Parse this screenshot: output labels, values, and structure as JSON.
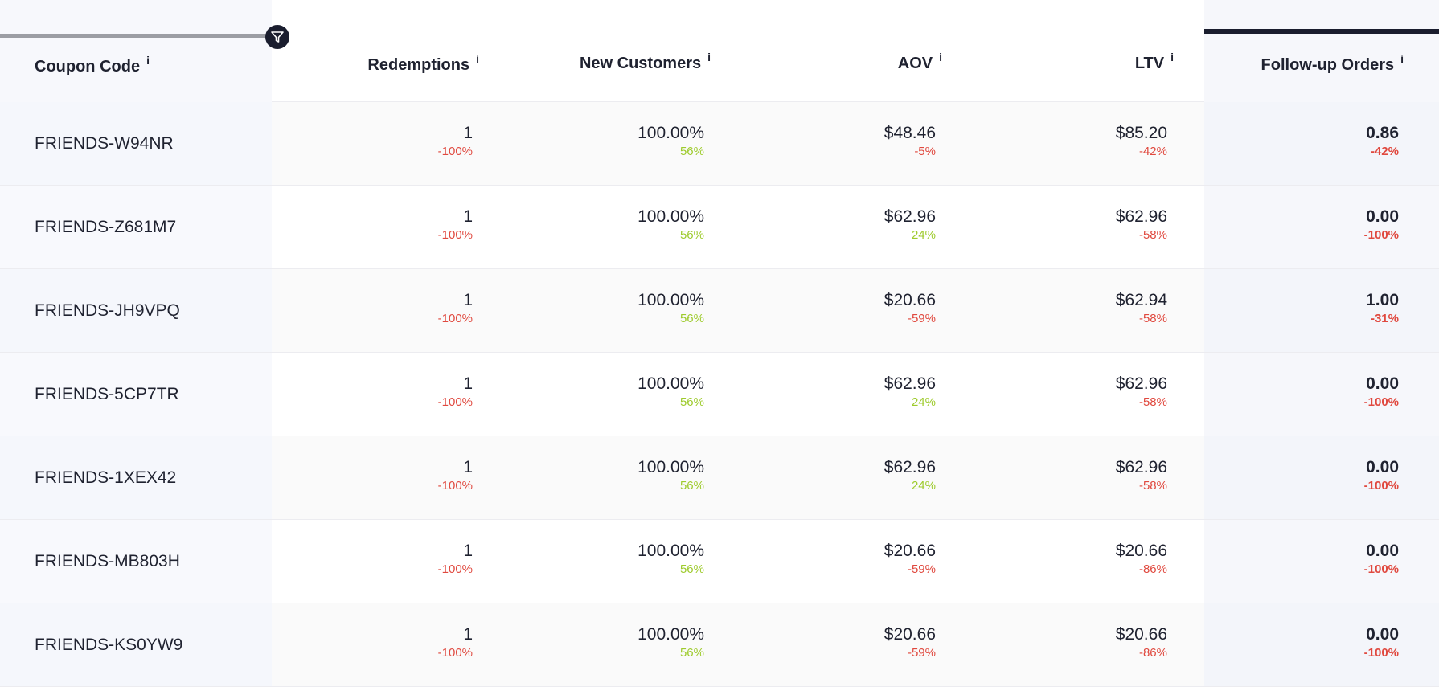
{
  "columns": {
    "coupon_code": "Coupon Code",
    "redemptions": "Redemptions",
    "new_customers": "New Customers",
    "aov": "AOV",
    "ltv": "LTV",
    "follow_up_orders": "Follow-up Orders",
    "info_glyph": "i"
  },
  "colors": {
    "negative": "#e0493f",
    "positive": "#9ecb2d",
    "accent": "#1a1d2e"
  },
  "rows": [
    {
      "code": "FRIENDS-W94NR",
      "redemptions": "1",
      "redemptions_chg": "-100%",
      "new_customers": "100.00%",
      "new_customers_chg": "56%",
      "aov": "$48.46",
      "aov_chg": "-5%",
      "ltv": "$85.20",
      "ltv_chg": "-42%",
      "followup": "0.86",
      "followup_chg": "-42%"
    },
    {
      "code": "FRIENDS-Z681M7",
      "redemptions": "1",
      "redemptions_chg": "-100%",
      "new_customers": "100.00%",
      "new_customers_chg": "56%",
      "aov": "$62.96",
      "aov_chg": "24%",
      "ltv": "$62.96",
      "ltv_chg": "-58%",
      "followup": "0.00",
      "followup_chg": "-100%"
    },
    {
      "code": "FRIENDS-JH9VPQ",
      "redemptions": "1",
      "redemptions_chg": "-100%",
      "new_customers": "100.00%",
      "new_customers_chg": "56%",
      "aov": "$20.66",
      "aov_chg": "-59%",
      "ltv": "$62.94",
      "ltv_chg": "-58%",
      "followup": "1.00",
      "followup_chg": "-31%"
    },
    {
      "code": "FRIENDS-5CP7TR",
      "redemptions": "1",
      "redemptions_chg": "-100%",
      "new_customers": "100.00%",
      "new_customers_chg": "56%",
      "aov": "$62.96",
      "aov_chg": "24%",
      "ltv": "$62.96",
      "ltv_chg": "-58%",
      "followup": "0.00",
      "followup_chg": "-100%"
    },
    {
      "code": "FRIENDS-1XEX42",
      "redemptions": "1",
      "redemptions_chg": "-100%",
      "new_customers": "100.00%",
      "new_customers_chg": "56%",
      "aov": "$62.96",
      "aov_chg": "24%",
      "ltv": "$62.96",
      "ltv_chg": "-58%",
      "followup": "0.00",
      "followup_chg": "-100%"
    },
    {
      "code": "FRIENDS-MB803H",
      "redemptions": "1",
      "redemptions_chg": "-100%",
      "new_customers": "100.00%",
      "new_customers_chg": "56%",
      "aov": "$20.66",
      "aov_chg": "-59%",
      "ltv": "$20.66",
      "ltv_chg": "-86%",
      "followup": "0.00",
      "followup_chg": "-100%"
    },
    {
      "code": "FRIENDS-KS0YW9",
      "redemptions": "1",
      "redemptions_chg": "-100%",
      "new_customers": "100.00%",
      "new_customers_chg": "56%",
      "aov": "$20.66",
      "aov_chg": "-59%",
      "ltv": "$20.66",
      "ltv_chg": "-86%",
      "followup": "0.00",
      "followup_chg": "-100%"
    }
  ]
}
